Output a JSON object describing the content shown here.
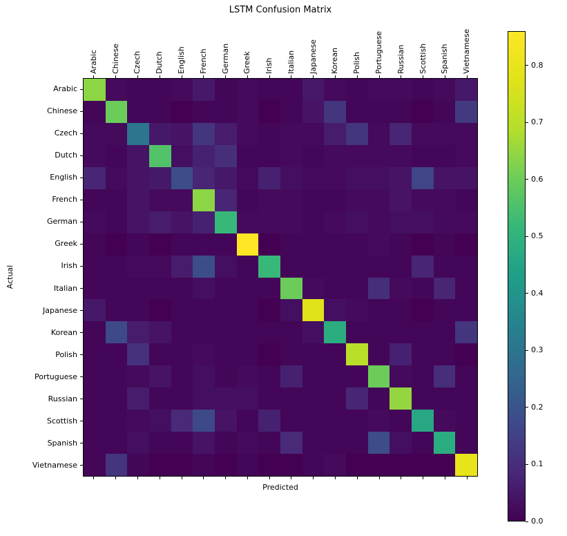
{
  "chart_data": {
    "type": "heatmap",
    "title": "LSTM Confusion Matrix",
    "xlabel": "Predicted",
    "ylabel": "Actual",
    "colormap": "viridis",
    "grid": false,
    "categories": [
      "Arabic",
      "Chinese",
      "Czech",
      "Dutch",
      "English",
      "French",
      "German",
      "Greek",
      "Irish",
      "Italian",
      "Japanese",
      "Korean",
      "Polish",
      "Portuguese",
      "Russian",
      "Scottish",
      "Spanish",
      "Vietnamese"
    ],
    "colorbar": {
      "position": "right",
      "vmin": 0.0,
      "vmax": 0.86,
      "ticks": [
        0.0,
        0.1,
        0.2,
        0.3,
        0.4,
        0.5,
        0.6,
        0.7,
        0.8
      ]
    },
    "matrix": [
      [
        0.64,
        0.02,
        0.01,
        0.01,
        0.02,
        0.05,
        0.01,
        0.02,
        0.01,
        0.01,
        0.05,
        0.02,
        0.01,
        0.02,
        0.02,
        0.01,
        0.02,
        0.05
      ],
      [
        0.01,
        0.6,
        0.01,
        0.01,
        0.0,
        0.01,
        0.01,
        0.02,
        0.0,
        0.01,
        0.04,
        0.12,
        0.01,
        0.01,
        0.01,
        0.0,
        0.01,
        0.13
      ],
      [
        0.02,
        0.02,
        0.3,
        0.05,
        0.04,
        0.12,
        0.06,
        0.02,
        0.01,
        0.02,
        0.02,
        0.06,
        0.12,
        0.02,
        0.08,
        0.02,
        0.02,
        0.02
      ],
      [
        0.02,
        0.01,
        0.04,
        0.56,
        0.03,
        0.07,
        0.1,
        0.01,
        0.01,
        0.02,
        0.01,
        0.02,
        0.02,
        0.02,
        0.02,
        0.01,
        0.01,
        0.02
      ],
      [
        0.08,
        0.02,
        0.04,
        0.05,
        0.18,
        0.08,
        0.05,
        0.02,
        0.07,
        0.03,
        0.02,
        0.02,
        0.03,
        0.03,
        0.04,
        0.16,
        0.04,
        0.04
      ],
      [
        0.01,
        0.01,
        0.04,
        0.02,
        0.02,
        0.64,
        0.08,
        0.01,
        0.02,
        0.02,
        0.01,
        0.01,
        0.02,
        0.02,
        0.04,
        0.02,
        0.02,
        0.01
      ],
      [
        0.02,
        0.01,
        0.04,
        0.06,
        0.04,
        0.07,
        0.52,
        0.02,
        0.02,
        0.02,
        0.01,
        0.02,
        0.03,
        0.02,
        0.03,
        0.03,
        0.02,
        0.02
      ],
      [
        0.01,
        0.0,
        0.01,
        0.0,
        0.01,
        0.01,
        0.01,
        0.86,
        0.0,
        0.01,
        0.01,
        0.01,
        0.01,
        0.02,
        0.01,
        0.0,
        0.01,
        0.0
      ],
      [
        0.01,
        0.01,
        0.02,
        0.02,
        0.06,
        0.18,
        0.03,
        0.01,
        0.52,
        0.01,
        0.01,
        0.01,
        0.01,
        0.01,
        0.01,
        0.08,
        0.01,
        0.01
      ],
      [
        0.01,
        0.01,
        0.01,
        0.01,
        0.01,
        0.03,
        0.01,
        0.01,
        0.01,
        0.6,
        0.02,
        0.01,
        0.01,
        0.1,
        0.02,
        0.01,
        0.08,
        0.01
      ],
      [
        0.05,
        0.01,
        0.01,
        0.0,
        0.01,
        0.01,
        0.01,
        0.01,
        0.0,
        0.03,
        0.78,
        0.03,
        0.02,
        0.01,
        0.01,
        0.0,
        0.01,
        0.01
      ],
      [
        0.01,
        0.17,
        0.06,
        0.04,
        0.01,
        0.01,
        0.01,
        0.01,
        0.01,
        0.01,
        0.03,
        0.48,
        0.01,
        0.01,
        0.01,
        0.01,
        0.01,
        0.12
      ],
      [
        0.01,
        0.01,
        0.11,
        0.01,
        0.01,
        0.02,
        0.01,
        0.01,
        0.0,
        0.01,
        0.01,
        0.01,
        0.7,
        0.01,
        0.07,
        0.01,
        0.01,
        0.0
      ],
      [
        0.01,
        0.01,
        0.02,
        0.04,
        0.01,
        0.03,
        0.01,
        0.02,
        0.01,
        0.07,
        0.01,
        0.01,
        0.01,
        0.6,
        0.02,
        0.01,
        0.1,
        0.01
      ],
      [
        0.01,
        0.01,
        0.06,
        0.01,
        0.01,
        0.03,
        0.03,
        0.03,
        0.01,
        0.01,
        0.01,
        0.01,
        0.08,
        0.01,
        0.65,
        0.01,
        0.01,
        0.01
      ],
      [
        0.01,
        0.01,
        0.02,
        0.03,
        0.09,
        0.17,
        0.04,
        0.01,
        0.07,
        0.01,
        0.01,
        0.01,
        0.01,
        0.02,
        0.01,
        0.46,
        0.02,
        0.01
      ],
      [
        0.01,
        0.01,
        0.03,
        0.01,
        0.01,
        0.04,
        0.01,
        0.02,
        0.01,
        0.09,
        0.01,
        0.01,
        0.01,
        0.18,
        0.03,
        0.01,
        0.48,
        0.01
      ],
      [
        0.01,
        0.12,
        0.01,
        0.0,
        0.0,
        0.01,
        0.0,
        0.01,
        0.0,
        0.0,
        0.01,
        0.02,
        0.0,
        0.0,
        0.0,
        0.0,
        0.0,
        0.8
      ]
    ],
    "viridis_anchors": [
      "#440154",
      "#482878",
      "#3e4a89",
      "#31688e",
      "#26828e",
      "#1f9e89",
      "#35b779",
      "#6dcd59",
      "#b4de2c",
      "#dfe318",
      "#fde725"
    ]
  }
}
